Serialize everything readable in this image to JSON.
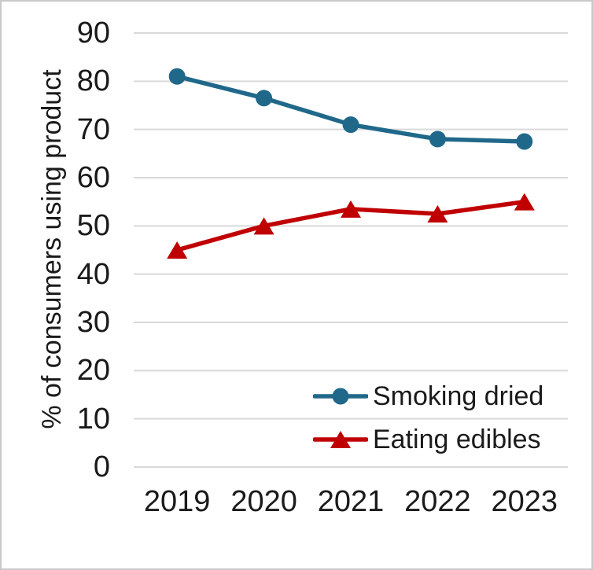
{
  "figure": {
    "background_color": "#ffffff",
    "border_color": "#c9c9c9"
  },
  "chart_data": {
    "type": "line",
    "title": "",
    "xlabel": "",
    "ylabel": "% of consumers using product",
    "categories": [
      "2019",
      "2020",
      "2021",
      "2022",
      "2023"
    ],
    "series": [
      {
        "name": "Smoking dried",
        "marker": "circle",
        "color": "#20688A",
        "values": [
          81,
          76.5,
          71,
          68,
          67.5
        ]
      },
      {
        "name": "Eating edibles",
        "marker": "triangle",
        "color": "#C00000",
        "values": [
          45,
          50,
          53.5,
          52.5,
          55
        ]
      }
    ],
    "ylim": [
      0,
      90
    ],
    "yticks": [
      0,
      10,
      20,
      30,
      40,
      50,
      60,
      70,
      80,
      90
    ],
    "grid": "horizontal",
    "gridline_color": "#D9D9D9",
    "axis_line_color": "#D9D9D9",
    "tick_label_color": "#1a1a1a",
    "legend_position": "inside-bottom-right"
  }
}
